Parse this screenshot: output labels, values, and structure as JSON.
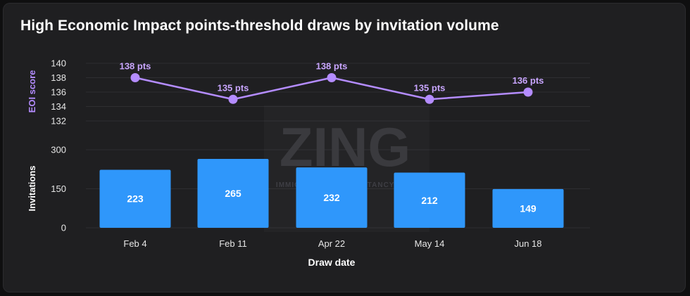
{
  "title": "High Economic Impact points-threshold draws by invitation volume",
  "watermark": {
    "brand": "ZING",
    "tagline": "IMMIGRATION CONSULTANCY INC."
  },
  "colors": {
    "bar": "#2f97fb",
    "line": "#b48cff",
    "background": "#1f1f21"
  },
  "chart_data": [
    {
      "type": "line",
      "ylabel": "EOI score",
      "ylim": [
        132,
        140
      ],
      "yticks": [
        140,
        138,
        136,
        134,
        132
      ],
      "categories": [
        "Feb 4",
        "Feb 11",
        "Apr 22",
        "May 14",
        "Jun 18"
      ],
      "series": [
        {
          "values": [
            138,
            135,
            138,
            135,
            136
          ],
          "labels": [
            "138 pts",
            "135 pts",
            "138 pts",
            "135 pts",
            "136 pts"
          ]
        }
      ]
    },
    {
      "type": "bar",
      "ylabel": "Invitations",
      "xlabel": "Draw date",
      "ylim": [
        0,
        300
      ],
      "yticks": [
        300,
        150,
        0
      ],
      "categories": [
        "Feb 4",
        "Feb 11",
        "Apr 22",
        "May 14",
        "Jun 18"
      ],
      "values": [
        223,
        265,
        232,
        212,
        149
      ]
    }
  ]
}
